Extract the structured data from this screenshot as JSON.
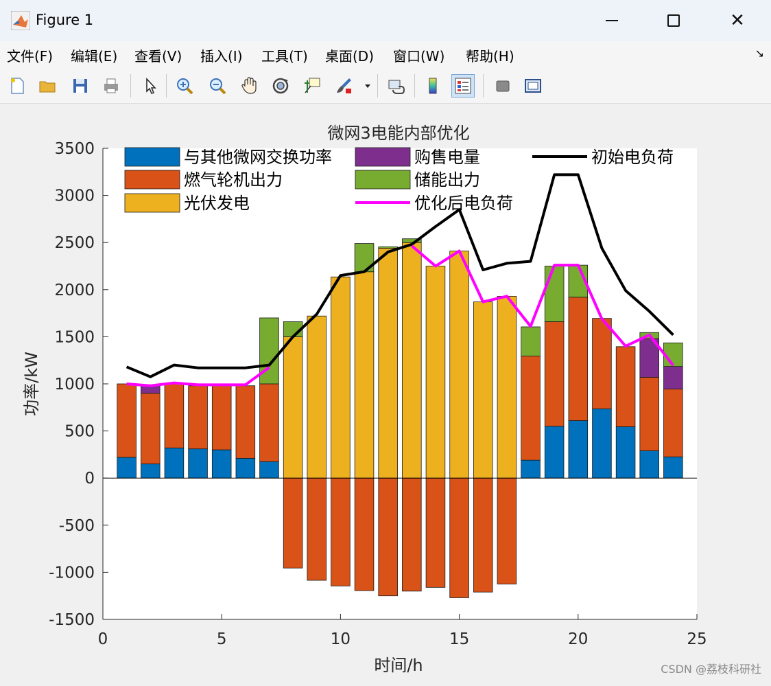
{
  "window": {
    "title": "Figure 1"
  },
  "menu": [
    "文件(F)",
    "编辑(E)",
    "查看(V)",
    "插入(I)",
    "工具(T)",
    "桌面(D)",
    "窗口(W)",
    "帮助(H)"
  ],
  "toolbar_icons": [
    "new-file-icon",
    "open-folder-icon",
    "save-icon",
    "print-icon",
    "pointer-icon",
    "zoom-in-icon",
    "zoom-out-icon",
    "pan-hand-icon",
    "rotate-3d-icon",
    "data-cursor-icon",
    "brush-icon",
    "brush-dropdown-icon",
    "link-plot-icon",
    "colorbar-icon",
    "legend-icon",
    "hide-plot-tools-icon",
    "show-plot-tools-icon"
  ],
  "watermark": "CSDN @荔枝科研社",
  "chart_data": {
    "type": "bar",
    "title": "微网3电能内部优化",
    "xlabel": "时间/h",
    "ylabel": "功率/kW",
    "xlim": [
      0,
      25
    ],
    "ylim": [
      -1500,
      3500
    ],
    "xticks": [
      0,
      5,
      10,
      15,
      20,
      25
    ],
    "yticks": [
      -1500,
      -1000,
      -500,
      0,
      500,
      1000,
      1500,
      2000,
      2500,
      3000,
      3500
    ],
    "legend_position": "top",
    "x": [
      1,
      2,
      3,
      4,
      5,
      6,
      7,
      8,
      9,
      10,
      11,
      12,
      13,
      14,
      15,
      16,
      17,
      18,
      19,
      20,
      21,
      22,
      23,
      24
    ],
    "stacked_series": [
      {
        "name": "与其他微网交换功率",
        "color": "#0072bd",
        "values": [
          220,
          150,
          320,
          310,
          300,
          210,
          175,
          0,
          0,
          0,
          0,
          0,
          0,
          0,
          0,
          0,
          0,
          190,
          550,
          610,
          735,
          545,
          290,
          225
        ]
      },
      {
        "name": "燃气轮机出力",
        "color": "#d95319",
        "values": [
          780,
          750,
          680,
          670,
          690,
          770,
          825,
          -955,
          -1085,
          -1145,
          -1195,
          -1250,
          -1200,
          -1160,
          -1270,
          -1210,
          -1125,
          1105,
          1110,
          1310,
          960,
          850,
          780,
          720
        ]
      },
      {
        "name": "光伏发电",
        "color": "#edb120",
        "values": [
          0,
          0,
          0,
          0,
          0,
          0,
          0,
          1500,
          1720,
          2135,
          2190,
          2440,
          2500,
          2250,
          2410,
          1870,
          1930,
          0,
          0,
          0,
          0,
          0,
          0,
          0
        ]
      },
      {
        "name": "购售电量",
        "color": "#7e2f8e",
        "values": [
          0,
          80,
          0,
          0,
          0,
          0,
          0,
          0,
          0,
          0,
          0,
          0,
          0,
          0,
          0,
          0,
          0,
          0,
          0,
          0,
          0,
          0,
          410,
          240
        ]
      },
      {
        "name": "储能出力",
        "color": "#77ac30",
        "values": [
          0,
          0,
          0,
          0,
          0,
          0,
          700,
          160,
          0,
          0,
          300,
          15,
          40,
          0,
          0,
          0,
          0,
          310,
          590,
          340,
          0,
          0,
          65,
          250
        ]
      }
    ],
    "lines": [
      {
        "name": "初始电负荷",
        "color": "#000000",
        "values": [
          1180,
          1075,
          1200,
          1170,
          1170,
          1170,
          1200,
          1500,
          1740,
          2150,
          2190,
          2400,
          2480,
          2670,
          2850,
          2210,
          2280,
          2300,
          3220,
          3220,
          2440,
          1990,
          1770,
          1520
        ]
      },
      {
        "name": "优化后电负荷",
        "color": "#ff00ff",
        "values": [
          1000,
          980,
          1010,
          990,
          990,
          990,
          1175,
          null,
          null,
          null,
          null,
          null,
          2465,
          2250,
          2410,
          1870,
          1930,
          1610,
          2260,
          2260,
          1690,
          1400,
          1520,
          1195
        ]
      }
    ]
  }
}
